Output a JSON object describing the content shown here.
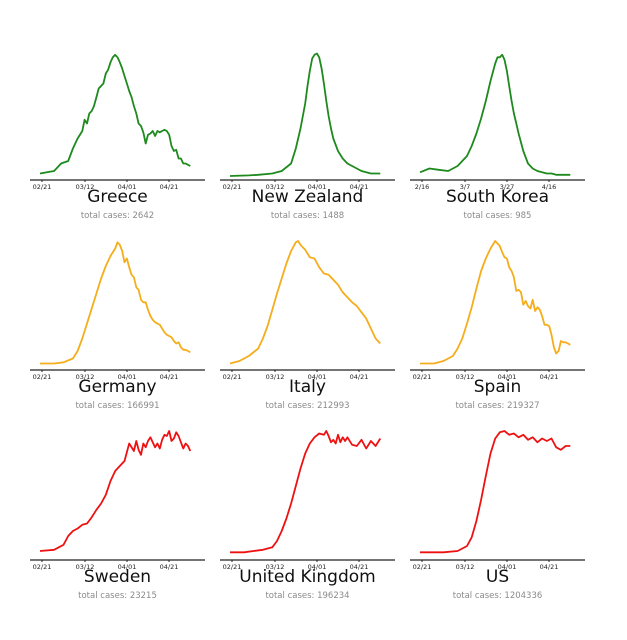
{
  "colors": {
    "green": "#1e8a1e",
    "orange": "#f5ad1b",
    "red": "#ee1111",
    "axis": "#222222"
  },
  "cases_prefix": "total cases: ",
  "chart_data": [
    {
      "type": "line",
      "country": "Greece",
      "total_cases": "2642",
      "color": "green",
      "ticks": [
        "02/21",
        "03/12",
        "04/01",
        "04/21"
      ],
      "xlim": [
        0,
        66
      ],
      "ylim": [
        0,
        1
      ],
      "x": [
        0,
        6,
        9,
        12,
        14,
        16,
        18,
        19,
        20,
        21,
        22,
        23,
        24,
        25,
        27,
        28,
        29,
        30,
        31,
        32,
        33,
        34,
        35,
        36,
        37,
        38,
        39,
        40,
        41,
        42,
        43,
        44,
        45,
        46,
        47,
        48,
        49,
        50,
        51,
        52,
        53,
        54,
        55,
        56,
        57,
        58,
        59,
        60,
        61,
        62,
        63,
        64
      ],
      "y": [
        0.02,
        0.04,
        0.1,
        0.12,
        0.22,
        0.3,
        0.36,
        0.45,
        0.42,
        0.5,
        0.52,
        0.56,
        0.63,
        0.7,
        0.74,
        0.82,
        0.85,
        0.91,
        0.95,
        0.97,
        0.95,
        0.91,
        0.86,
        0.8,
        0.74,
        0.68,
        0.63,
        0.56,
        0.5,
        0.42,
        0.4,
        0.35,
        0.26,
        0.33,
        0.34,
        0.36,
        0.32,
        0.36,
        0.35,
        0.36,
        0.37,
        0.36,
        0.33,
        0.24,
        0.2,
        0.21,
        0.14,
        0.14,
        0.1,
        0.1,
        0.09,
        0.08
      ]
    },
    {
      "type": "line",
      "country": "New Zealand",
      "total_cases": "1488",
      "color": "green",
      "ticks": [
        "02/21",
        "03/12",
        "04/01",
        "04/21"
      ],
      "xlim": [
        0,
        66
      ],
      "ylim": [
        0,
        1
      ],
      "x": [
        0,
        8,
        12,
        18,
        22,
        26,
        28,
        30,
        32,
        33,
        34,
        35,
        36,
        37,
        38,
        39,
        40,
        41,
        42,
        43,
        44,
        46,
        48,
        50,
        52,
        54,
        56,
        58,
        60,
        62,
        64
      ],
      "y": [
        0,
        0.005,
        0.01,
        0.02,
        0.04,
        0.1,
        0.22,
        0.38,
        0.58,
        0.72,
        0.84,
        0.94,
        0.97,
        0.98,
        0.95,
        0.86,
        0.74,
        0.6,
        0.48,
        0.38,
        0.3,
        0.2,
        0.14,
        0.1,
        0.08,
        0.06,
        0.04,
        0.03,
        0.02,
        0.02,
        0.02
      ]
    },
    {
      "type": "line",
      "country": "South Korea",
      "total_cases": "985",
      "color": "green",
      "ticks": [
        "2/16",
        "3/7",
        "3/27",
        "4/16"
      ],
      "xlim": [
        0,
        66
      ],
      "ylim": [
        0,
        1
      ],
      "x": [
        0,
        4,
        8,
        12,
        14,
        16,
        18,
        20,
        22,
        24,
        26,
        28,
        30,
        32,
        33,
        34,
        35,
        36,
        37,
        38,
        39,
        40,
        41,
        42,
        44,
        46,
        48,
        50,
        52,
        54,
        56,
        58,
        60,
        62,
        64
      ],
      "y": [
        0.03,
        0.06,
        0.05,
        0.04,
        0.06,
        0.08,
        0.12,
        0.16,
        0.24,
        0.34,
        0.46,
        0.6,
        0.76,
        0.9,
        0.95,
        0.95,
        0.97,
        0.93,
        0.84,
        0.72,
        0.6,
        0.5,
        0.42,
        0.34,
        0.2,
        0.1,
        0.06,
        0.04,
        0.03,
        0.02,
        0.02,
        0.01,
        0.01,
        0.01,
        0.01
      ]
    },
    {
      "type": "line",
      "country": "Germany",
      "total_cases": "166991",
      "color": "orange",
      "ticks": [
        "02/21",
        "03/12",
        "04/01",
        "04/21"
      ],
      "xlim": [
        0,
        66
      ],
      "ylim": [
        0,
        1
      ],
      "x": [
        0,
        6,
        10,
        14,
        16,
        18,
        20,
        22,
        24,
        26,
        28,
        30,
        32,
        33,
        34,
        35,
        36,
        37,
        38,
        39,
        40,
        41,
        42,
        43,
        44,
        45,
        46,
        47,
        48,
        49,
        50,
        51,
        52,
        53,
        54,
        55,
        56,
        57,
        58,
        59,
        60,
        61,
        62,
        63,
        64
      ],
      "y": [
        0.02,
        0.02,
        0.03,
        0.06,
        0.12,
        0.22,
        0.34,
        0.46,
        0.58,
        0.7,
        0.8,
        0.88,
        0.94,
        0.99,
        0.97,
        0.92,
        0.83,
        0.86,
        0.79,
        0.73,
        0.71,
        0.63,
        0.61,
        0.53,
        0.51,
        0.51,
        0.45,
        0.4,
        0.37,
        0.35,
        0.34,
        0.33,
        0.3,
        0.27,
        0.25,
        0.24,
        0.23,
        0.2,
        0.18,
        0.19,
        0.15,
        0.13,
        0.13,
        0.12,
        0.11
      ]
    },
    {
      "type": "line",
      "country": "Italy",
      "total_cases": "212993",
      "color": "orange",
      "ticks": [
        "02/21",
        "03/12",
        "04/01",
        "04/21"
      ],
      "xlim": [
        0,
        66
      ],
      "ylim": [
        0,
        1
      ],
      "x": [
        0,
        4,
        8,
        12,
        14,
        16,
        18,
        20,
        22,
        24,
        26,
        28,
        29,
        30,
        31,
        32,
        34,
        36,
        38,
        40,
        42,
        44,
        46,
        48,
        50,
        52,
        54,
        56,
        58,
        60,
        62,
        64
      ],
      "y": [
        0.02,
        0.04,
        0.08,
        0.14,
        0.22,
        0.32,
        0.45,
        0.58,
        0.7,
        0.82,
        0.92,
        0.99,
        1.0,
        0.97,
        0.95,
        0.93,
        0.87,
        0.86,
        0.79,
        0.74,
        0.73,
        0.69,
        0.65,
        0.59,
        0.55,
        0.51,
        0.48,
        0.43,
        0.38,
        0.3,
        0.22,
        0.18
      ]
    },
    {
      "type": "line",
      "country": "Spain",
      "total_cases": "219327",
      "color": "orange",
      "ticks": [
        "02/21",
        "03/12",
        "04/01",
        "04/21"
      ],
      "xlim": [
        0,
        66
      ],
      "ylim": [
        0,
        1
      ],
      "x": [
        0,
        6,
        10,
        14,
        16,
        18,
        20,
        22,
        24,
        26,
        28,
        30,
        32,
        34,
        35,
        36,
        37,
        38,
        39,
        40,
        41,
        42,
        43,
        44,
        45,
        46,
        47,
        48,
        49,
        50,
        51,
        52,
        53,
        54,
        55,
        56,
        57,
        58,
        59,
        60,
        61,
        62,
        63,
        64
      ],
      "y": [
        0.02,
        0.02,
        0.04,
        0.08,
        0.14,
        0.22,
        0.34,
        0.47,
        0.62,
        0.76,
        0.86,
        0.94,
        1.0,
        0.96,
        0.91,
        0.87,
        0.86,
        0.79,
        0.76,
        0.71,
        0.6,
        0.61,
        0.59,
        0.49,
        0.52,
        0.48,
        0.46,
        0.53,
        0.44,
        0.47,
        0.45,
        0.4,
        0.33,
        0.33,
        0.32,
        0.25,
        0.15,
        0.1,
        0.12,
        0.2,
        0.19,
        0.19,
        0.18,
        0.17
      ]
    },
    {
      "type": "line",
      "country": "Sweden",
      "total_cases": "23215",
      "color": "red",
      "ticks": [
        "02/21",
        "03/12",
        "04/01",
        "04/21"
      ],
      "xlim": [
        0,
        66
      ],
      "ylim": [
        0,
        1
      ],
      "x": [
        0,
        6,
        10,
        12,
        14,
        16,
        18,
        20,
        22,
        24,
        26,
        28,
        30,
        32,
        34,
        36,
        38,
        40,
        41,
        42,
        43,
        44,
        45,
        46,
        47,
        48,
        49,
        50,
        51,
        52,
        53,
        54,
        55,
        56,
        57,
        58,
        59,
        60,
        61,
        62,
        63,
        64
      ],
      "y": [
        0.04,
        0.05,
        0.09,
        0.16,
        0.2,
        0.22,
        0.25,
        0.26,
        0.31,
        0.37,
        0.42,
        0.49,
        0.6,
        0.68,
        0.72,
        0.76,
        0.9,
        0.84,
        0.92,
        0.85,
        0.81,
        0.9,
        0.87,
        0.92,
        0.95,
        0.91,
        0.87,
        0.9,
        0.86,
        0.93,
        0.97,
        0.96,
        1.0,
        0.92,
        0.94,
        0.99,
        0.96,
        0.91,
        0.86,
        0.9,
        0.88,
        0.84
      ]
    },
    {
      "type": "line",
      "country": "United Kingdom",
      "total_cases": "196234",
      "color": "red",
      "ticks": [
        "02/21",
        "03/12",
        "04/01",
        "04/21"
      ],
      "xlim": [
        0,
        66
      ],
      "ylim": [
        0,
        1
      ],
      "x": [
        0,
        6,
        10,
        14,
        18,
        20,
        22,
        24,
        26,
        28,
        30,
        32,
        34,
        36,
        38,
        40,
        41,
        42,
        43,
        44,
        45,
        46,
        47,
        48,
        49,
        50,
        52,
        54,
        56,
        58,
        60,
        62,
        64
      ],
      "y": [
        0.03,
        0.03,
        0.04,
        0.05,
        0.07,
        0.12,
        0.2,
        0.3,
        0.42,
        0.56,
        0.7,
        0.82,
        0.9,
        0.95,
        0.98,
        0.97,
        1.0,
        0.96,
        0.91,
        0.93,
        0.9,
        0.97,
        0.91,
        0.95,
        0.92,
        0.95,
        0.89,
        0.88,
        0.93,
        0.86,
        0.92,
        0.88,
        0.94
      ]
    },
    {
      "type": "line",
      "country": "US",
      "total_cases": "1204336",
      "color": "red",
      "ticks": [
        "02/21",
        "03/12",
        "04/01",
        "04/21"
      ],
      "xlim": [
        0,
        66
      ],
      "ylim": [
        0,
        1
      ],
      "x": [
        0,
        10,
        16,
        20,
        22,
        24,
        26,
        28,
        30,
        32,
        34,
        36,
        38,
        40,
        42,
        44,
        46,
        48,
        50,
        52,
        54,
        56,
        58,
        60,
        62,
        64
      ],
      "y": [
        0.03,
        0.03,
        0.04,
        0.08,
        0.15,
        0.28,
        0.45,
        0.64,
        0.82,
        0.94,
        0.99,
        1.0,
        0.97,
        0.98,
        0.95,
        0.97,
        0.93,
        0.95,
        0.91,
        0.94,
        0.92,
        0.94,
        0.87,
        0.85,
        0.88,
        0.88
      ]
    }
  ]
}
